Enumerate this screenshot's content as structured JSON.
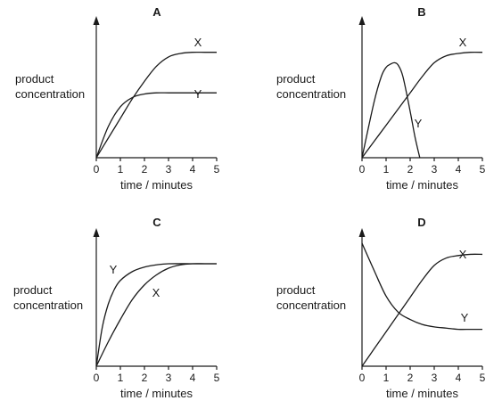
{
  "chart_data": [
    {
      "type": "line",
      "title": "A",
      "xlabel": "time / minutes",
      "ylabel": [
        "product",
        "concentration"
      ],
      "xticks": [
        "0",
        "1",
        "2",
        "3",
        "4",
        "5"
      ],
      "xlim": [
        0,
        5
      ],
      "ylim": [
        0,
        1
      ],
      "series": [
        {
          "name": "X",
          "x": [
            0,
            0.5,
            1,
            1.5,
            2,
            2.5,
            3,
            3.5,
            4,
            4.5,
            5
          ],
          "y": [
            0,
            0.17,
            0.34,
            0.51,
            0.66,
            0.79,
            0.87,
            0.9,
            0.91,
            0.91,
            0.91
          ]
        },
        {
          "name": "Y",
          "x": [
            0,
            0.5,
            1,
            1.5,
            2,
            2.5,
            3,
            3.5,
            4,
            4.5,
            5
          ],
          "y": [
            0,
            0.27,
            0.44,
            0.52,
            0.55,
            0.56,
            0.56,
            0.56,
            0.56,
            0.56,
            0.56
          ]
        }
      ]
    },
    {
      "type": "line",
      "title": "B",
      "xlabel": "time / minutes",
      "ylabel": [
        "product",
        "concentration"
      ],
      "xticks": [
        "0",
        "1",
        "2",
        "3",
        "4",
        "5"
      ],
      "xlim": [
        0,
        5
      ],
      "ylim": [
        0,
        1
      ],
      "series": [
        {
          "name": "X",
          "x": [
            0,
            0.5,
            1,
            1.5,
            2,
            2.5,
            3,
            3.5,
            4,
            4.5,
            5
          ],
          "y": [
            0,
            0.14,
            0.28,
            0.42,
            0.56,
            0.7,
            0.82,
            0.88,
            0.9,
            0.91,
            0.91
          ]
        },
        {
          "name": "Y",
          "x": [
            0,
            0.5,
            0.8,
            1,
            1.2,
            1.35,
            1.5,
            1.7,
            2,
            2.2,
            2.4
          ],
          "y": [
            0,
            0.48,
            0.7,
            0.78,
            0.81,
            0.82,
            0.8,
            0.7,
            0.4,
            0.18,
            0
          ]
        }
      ]
    },
    {
      "type": "line",
      "title": "C",
      "xlabel": "time / minutes",
      "ylabel": [
        "product",
        "concentration"
      ],
      "xticks": [
        "0",
        "1",
        "2",
        "3",
        "4",
        "5"
      ],
      "xlim": [
        0,
        5
      ],
      "ylim": [
        0,
        1
      ],
      "series": [
        {
          "name": "X",
          "x": [
            0,
            0.5,
            1,
            1.5,
            2,
            2.5,
            3,
            3.5,
            4,
            4.5,
            5
          ],
          "y": [
            0,
            0.22,
            0.42,
            0.6,
            0.73,
            0.82,
            0.88,
            0.91,
            0.92,
            0.92,
            0.92
          ]
        },
        {
          "name": "Y",
          "x": [
            0,
            0.25,
            0.5,
            0.75,
            1,
            1.5,
            2,
            2.5,
            3,
            4,
            5
          ],
          "y": [
            0,
            0.35,
            0.56,
            0.69,
            0.77,
            0.85,
            0.89,
            0.91,
            0.92,
            0.92,
            0.92
          ]
        }
      ]
    },
    {
      "type": "line",
      "title": "D",
      "xlabel": "time / minutes",
      "ylabel": [
        "product",
        "concentration"
      ],
      "xticks": [
        "0",
        "1",
        "2",
        "3",
        "4",
        "5"
      ],
      "xlim": [
        0,
        5
      ],
      "ylim": [
        0,
        1
      ],
      "series": [
        {
          "name": "X",
          "x": [
            0,
            0.5,
            1,
            1.5,
            2,
            2.5,
            3,
            3.5,
            4,
            4.5,
            5
          ],
          "y": [
            0,
            0.14,
            0.28,
            0.42,
            0.56,
            0.7,
            0.82,
            0.88,
            0.9,
            0.91,
            0.91
          ]
        },
        {
          "name": "Y",
          "x": [
            0,
            0.5,
            1,
            1.5,
            2,
            2.5,
            3,
            3.5,
            4,
            4.5,
            5
          ],
          "y": [
            1,
            0.78,
            0.57,
            0.44,
            0.38,
            0.34,
            0.32,
            0.31,
            0.3,
            0.3,
            0.3
          ]
        }
      ]
    }
  ]
}
